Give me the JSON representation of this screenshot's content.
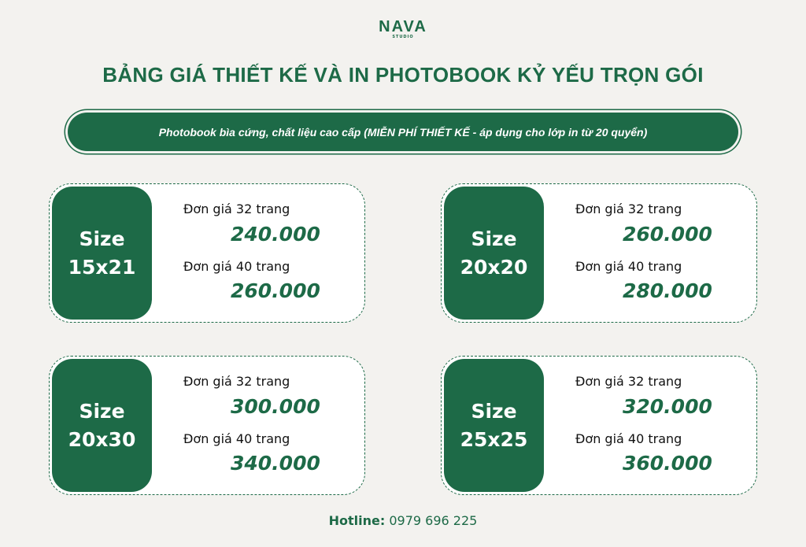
{
  "logo": {
    "name": "NAVA",
    "sub": "STUDIO"
  },
  "title": "BẢNG GIÁ THIẾT KẾ VÀ IN PHOTOBOOK KỶ YẾU TRỌN GÓI",
  "subtitle": "Photobook bìa cứng, chất liệu cao cấp (MIỄN PHÍ THIẾT KẾ - áp dụng cho lớp in từ 20 quyển)",
  "accent_color": "#1d6a47",
  "cards": [
    {
      "size_label": "Size",
      "size": "15x21",
      "label_32": "Đơn giá 32 trang",
      "price_32": "240.000",
      "label_40": "Đơn giá 40 trang",
      "price_40": "260.000"
    },
    {
      "size_label": "Size",
      "size": "20x20",
      "label_32": "Đơn giá 32 trang",
      "price_32": "260.000",
      "label_40": "Đơn giá 40 trang",
      "price_40": "280.000"
    },
    {
      "size_label": "Size",
      "size": "20x30",
      "label_32": "Đơn giá 32 trang",
      "price_32": "300.000",
      "label_40": "Đơn giá 40 trang",
      "price_40": "340.000"
    },
    {
      "size_label": "Size",
      "size": "25x25",
      "label_32": "Đơn giá 32 trang",
      "price_32": "320.000",
      "label_40": "Đơn giá 40 trang",
      "price_40": "360.000"
    }
  ],
  "hotline": {
    "label": "Hotline:",
    "number": "0979 696 225"
  }
}
